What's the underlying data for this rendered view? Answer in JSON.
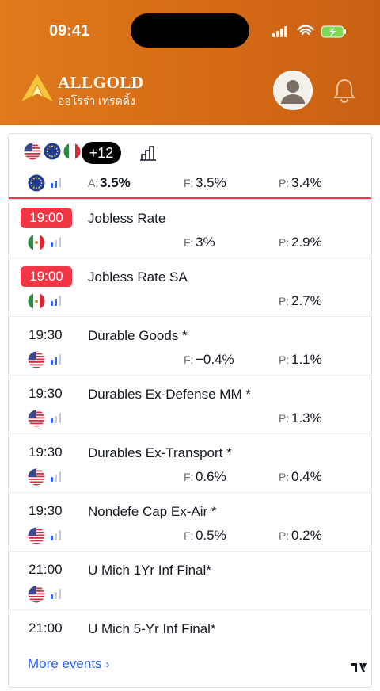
{
  "status_bar": {
    "time": "09:41"
  },
  "header": {
    "brand": "ALLGOLD",
    "subtitle": "ออโรร่า เทรดดิ้ง"
  },
  "filter": {
    "more_countries": "+12"
  },
  "current_event": {
    "actual_label": "A:",
    "actual": "3.5%",
    "forecast_label": "F:",
    "forecast": "3.5%",
    "previous_label": "P:",
    "previous": "3.4%"
  },
  "events": [
    {
      "time": "19:00",
      "name": "Jobless Rate",
      "forecast_label": "F:",
      "forecast": "3%",
      "previous_label": "P:",
      "previous": "2.9%"
    },
    {
      "time": "19:00",
      "name": "Jobless Rate SA",
      "previous_label": "P:",
      "previous": "2.7%"
    },
    {
      "time": "19:30",
      "name": "Durable Goods *",
      "forecast_label": "F:",
      "forecast": "−0.4%",
      "previous_label": "P:",
      "previous": "1.1%"
    },
    {
      "time": "19:30",
      "name": "Durables Ex-Defense MM *",
      "previous_label": "P:",
      "previous": "1.3%"
    },
    {
      "time": "19:30",
      "name": "Durables Ex-Transport *",
      "forecast_label": "F:",
      "forecast": "0.6%",
      "previous_label": "P:",
      "previous": "0.4%"
    },
    {
      "time": "19:30",
      "name": "Nondefe Cap Ex-Air *",
      "forecast_label": "F:",
      "forecast": "0.5%",
      "previous_label": "P:",
      "previous": "0.2%"
    },
    {
      "time": "21:00",
      "name": "U Mich 1Yr Inf Final*"
    },
    {
      "time": "21:00",
      "name": "U Mich 5-Yr Inf Final*"
    }
  ],
  "footer": {
    "more_events": "More events"
  }
}
